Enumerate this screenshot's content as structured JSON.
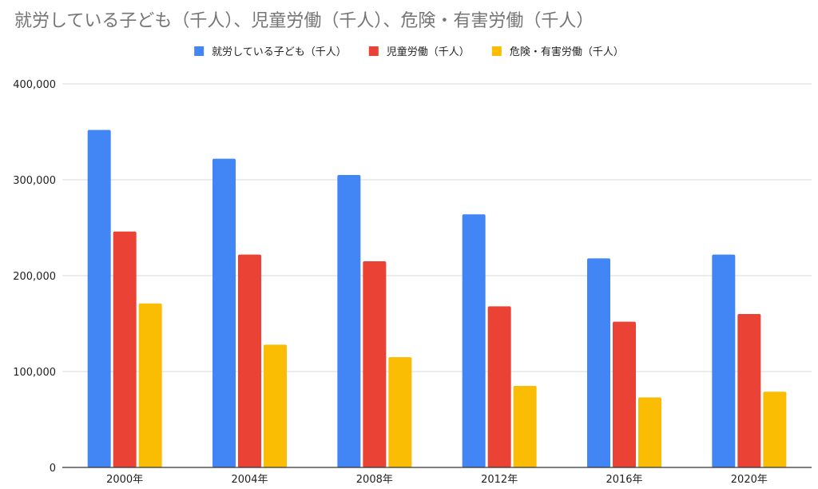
{
  "chart_data": {
    "type": "bar",
    "title": "就労している子ども（千人）、児童労働（千人）、危険・有害労働（千人）",
    "categories": [
      "2000年",
      "2004年",
      "2008年",
      "2012年",
      "2016年",
      "2020年"
    ],
    "series": [
      {
        "name": "就労している子ども（千人）",
        "color": "#4285F4",
        "values": [
          352000,
          322000,
          305000,
          264000,
          218000,
          222000
        ]
      },
      {
        "name": "児童労働（千人）",
        "color": "#EA4335",
        "values": [
          246000,
          222000,
          215000,
          168000,
          152000,
          160000
        ]
      },
      {
        "name": "危険・有害労働（千人）",
        "color": "#FBBC04",
        "values": [
          171000,
          128000,
          115000,
          85000,
          73000,
          79000
        ]
      }
    ],
    "xlabel": "",
    "ylabel": "",
    "ylim": [
      0,
      400000
    ],
    "yticks": [
      0,
      100000,
      200000,
      300000,
      400000
    ],
    "ytick_labels": [
      "0",
      "100,000",
      "200,000",
      "300,000",
      "400,000"
    ],
    "grid": true,
    "legend_position": "top"
  }
}
